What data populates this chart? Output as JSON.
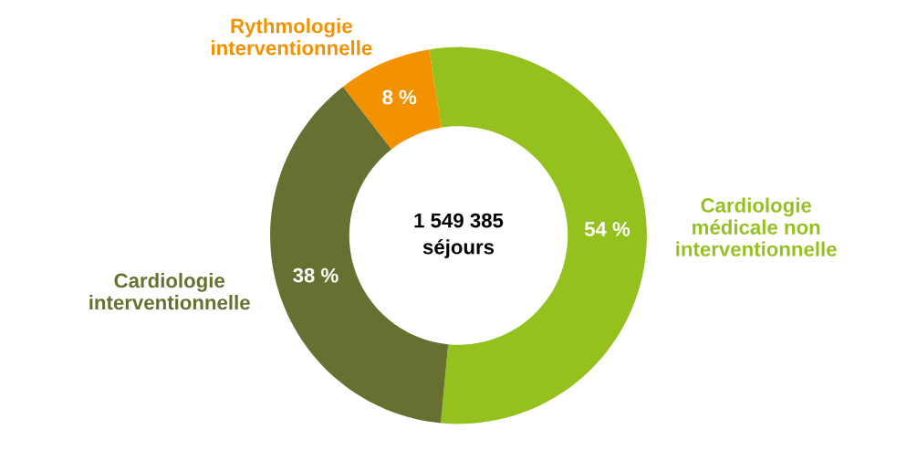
{
  "chart_data": {
    "type": "donut",
    "categories": [
      "Cardiologie médicale non interventionnelle",
      "Cardiologie interventionnelle",
      "Rythmologie interventionnelle"
    ],
    "values": [
      54,
      38,
      8
    ],
    "colors": [
      "#95c11f",
      "#687031",
      "#f39200"
    ],
    "value_labels": [
      "54 %",
      "38 %",
      "8 %"
    ],
    "annotations": [
      "1 549 385\nséjours"
    ]
  }
}
